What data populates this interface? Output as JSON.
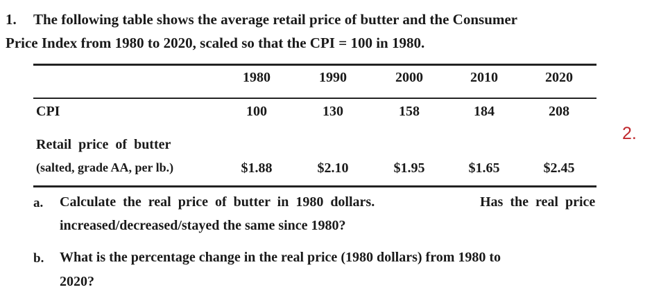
{
  "question": {
    "number": "1.",
    "lines": [
      "The following table shows the average retail price of butter and the Consumer",
      "Price Index from 1980 to 2020, scaled so that the CPI = 100 in 1980."
    ],
    "table": {
      "header": [
        "1980",
        "1990",
        "2000",
        "2010",
        "2020"
      ],
      "rows": [
        {
          "label": [
            "CPI"
          ],
          "cells": [
            "100",
            "130",
            "158",
            "184",
            "208"
          ]
        },
        {
          "label": [
            "Retail  price  of  butter",
            "(salted, grade AA, per lb.)"
          ],
          "cells": [
            "$1.88",
            "$2.10",
            "$1.95",
            "$1.65",
            "$2.45"
          ]
        }
      ]
    },
    "annotation": "2.",
    "parts": [
      {
        "letter": "a.",
        "lines": [
          "Calculate  the  real  price  of  butter  in  1980  dollars.",
          "Has  the  real  price",
          "increased/decreased/stayed the same since 1980?"
        ]
      },
      {
        "letter": "b.",
        "lines": [
          "What is the percentage change in the real price (1980 dollars) from 1980 to",
          "2020?"
        ]
      }
    ]
  }
}
